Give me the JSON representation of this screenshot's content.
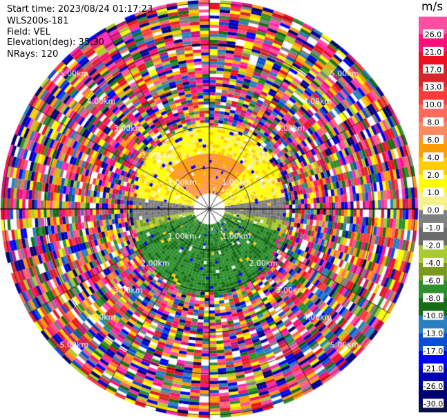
{
  "header": {
    "start_time": "Start time: 2023/08/24 01:17:23",
    "instrument": "WLS200s-181",
    "field": "Field: VEL",
    "elevation": "Elevation(deg): 35.30",
    "nrays": "NRays: 120"
  },
  "chart_data": {
    "type": "heatmap",
    "projection": "polar (PPI scan)",
    "grid": true,
    "range_ring_labels": [
      "1.00km",
      "2.00km",
      "3.00km",
      "4.00km",
      "5.00km"
    ],
    "range_rings_km": [
      1,
      2,
      3,
      4,
      5
    ],
    "colorbar": {
      "unit": "m/s",
      "ticks": [
        "26.0",
        "21.0",
        "17.0",
        "13.0",
        "10.0",
        "8.0",
        "6.0",
        "4.0",
        "2.0",
        "1.0",
        "0.0",
        "-1.0",
        "-2.0",
        "-4.0",
        "-6.0",
        "-8.0",
        "-10.0",
        "-13.0",
        "-17.0",
        "-21.0",
        "-26.0",
        "-30.0"
      ],
      "colors": [
        "#ff4fa3",
        "#ff0f7a",
        "#ee1020",
        "#d8262b",
        "#ff3b3b",
        "#ff6a5a",
        "#ff8a60",
        "#ff9d00",
        "#ffcc00",
        "#ffff00",
        "#f5f08a",
        "#7f7f7f",
        "#6b6b6b",
        "#a8cc30",
        "#7a9a1e",
        "#2d8f2d",
        "#156e15",
        "#2a7fc0",
        "#0a4fd8",
        "#0000ff",
        "#0000b0",
        "#000070",
        "#0a1045"
      ]
    },
    "ppi_structure": [
      {
        "range_km": [
          0.4,
          1.8
        ],
        "pattern": "positive velocities (yellow/orange) in the north half, negative (green) in the south half, gray near zero along east-west"
      },
      {
        "range_km": [
          1.8,
          5.0
        ],
        "pattern": "noise / aliased multicolored gates"
      }
    ]
  }
}
